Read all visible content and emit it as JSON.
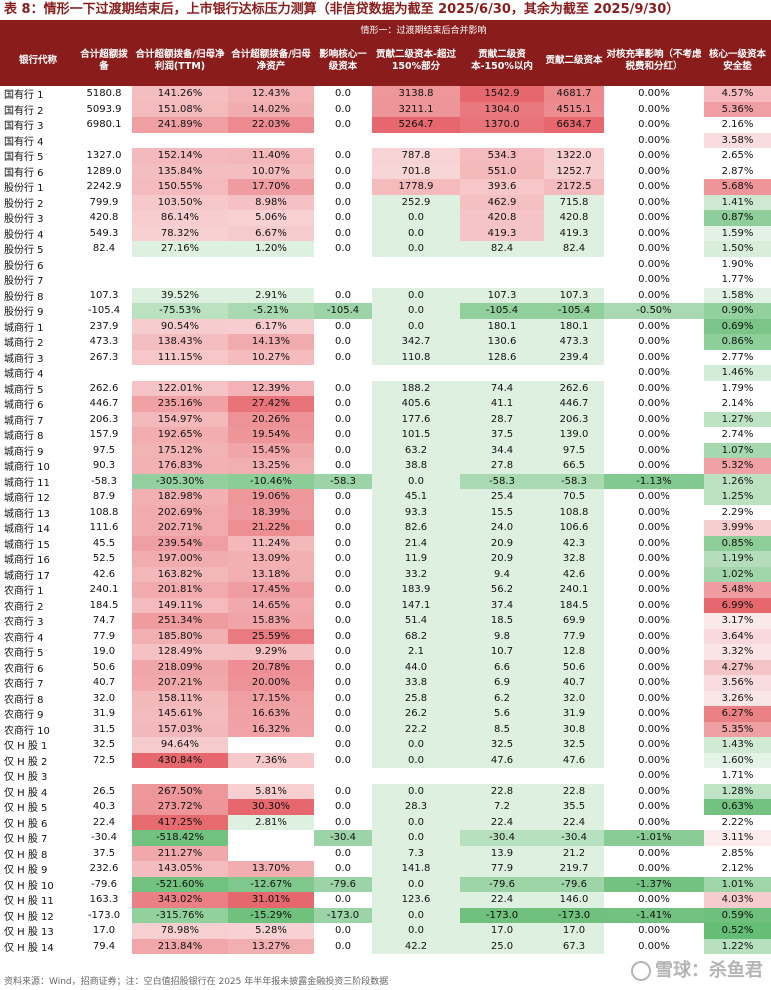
{
  "title": "表 8：情形一下过渡期结束后，上市银行达标压力测算（非信贷数据为截至 2025/6/30，其余为截至 2025/9/30）",
  "scenario_label": "情形一：过渡期结束后合并影响",
  "colors": {
    "header_bg": "#8b1c1c",
    "pos": "#d9545b",
    "neg": "#3ea65b"
  },
  "columns": [
    "银行代称",
    "合计超额拨备",
    "合计超额拨备/归母净利润(TTM)",
    "合计超额拨备/归母净资产",
    "影响核心一级资本",
    "贡献二级资本-超过150%部分",
    "贡献二级资本-150%以内",
    "贡献二级资本",
    "对核充率影响（不考虑税费和分红）",
    "核心一级资本安全垫"
  ],
  "rows": [
    [
      "国有行 1",
      "5180.8",
      "141.26%",
      "12.43%",
      "0.0",
      "3138.8",
      "1542.9",
      "4681.7",
      "0.00%",
      "4.57%"
    ],
    [
      "国有行 2",
      "5093.9",
      "151.08%",
      "14.02%",
      "0.0",
      "3211.1",
      "1304.0",
      "4515.1",
      "0.00%",
      "5.36%"
    ],
    [
      "国有行 3",
      "6980.1",
      "241.89%",
      "22.03%",
      "0.0",
      "5264.7",
      "1370.0",
      "6634.7",
      "0.00%",
      "2.16%"
    ],
    [
      "国有行 4",
      "",
      "",
      "",
      "",
      "",
      "",
      "",
      "0.00%",
      "3.58%"
    ],
    [
      "国有行 5",
      "1327.0",
      "152.14%",
      "11.40%",
      "0.0",
      "787.8",
      "534.3",
      "1322.0",
      "0.00%",
      "2.65%"
    ],
    [
      "国有行 6",
      "1289.0",
      "135.84%",
      "10.07%",
      "0.0",
      "701.8",
      "551.0",
      "1252.7",
      "0.00%",
      "2.87%"
    ],
    [
      "股份行 1",
      "2242.9",
      "150.55%",
      "17.70%",
      "0.0",
      "1778.9",
      "393.6",
      "2172.5",
      "0.00%",
      "5.68%"
    ],
    [
      "股份行 2",
      "799.9",
      "103.50%",
      "8.98%",
      "0.0",
      "252.9",
      "462.9",
      "715.8",
      "0.00%",
      "1.41%"
    ],
    [
      "股份行 3",
      "420.8",
      "86.14%",
      "5.06%",
      "0.0",
      "0.0",
      "420.8",
      "420.8",
      "0.00%",
      "0.87%"
    ],
    [
      "股份行 4",
      "549.3",
      "78.32%",
      "6.67%",
      "0.0",
      "0.0",
      "419.3",
      "419.3",
      "0.00%",
      "1.59%"
    ],
    [
      "股份行 5",
      "82.4",
      "27.16%",
      "1.20%",
      "0.0",
      "0.0",
      "82.4",
      "82.4",
      "0.00%",
      "1.50%"
    ],
    [
      "股份行 6",
      "",
      "",
      "",
      "",
      "",
      "",
      "",
      "0.00%",
      "1.90%"
    ],
    [
      "股份行 7",
      "",
      "",
      "",
      "",
      "",
      "",
      "",
      "0.00%",
      "1.77%"
    ],
    [
      "股份行 8",
      "107.3",
      "39.52%",
      "2.91%",
      "0.0",
      "0.0",
      "107.3",
      "107.3",
      "0.00%",
      "1.58%"
    ],
    [
      "股份行 9",
      "-105.4",
      "-75.53%",
      "-5.21%",
      "-105.4",
      "0.0",
      "-105.4",
      "-105.4",
      "-0.50%",
      "0.90%"
    ],
    [
      "城商行 1",
      "237.9",
      "90.54%",
      "6.17%",
      "0.0",
      "0.0",
      "180.1",
      "180.1",
      "0.00%",
      "0.69%"
    ],
    [
      "城商行 2",
      "473.3",
      "138.43%",
      "14.13%",
      "0.0",
      "342.7",
      "130.6",
      "473.3",
      "0.00%",
      "0.86%"
    ],
    [
      "城商行 3",
      "267.3",
      "111.15%",
      "10.27%",
      "0.0",
      "110.8",
      "128.6",
      "239.4",
      "0.00%",
      "2.77%"
    ],
    [
      "城商行 4",
      "",
      "",
      "",
      "",
      "",
      "",
      "",
      "0.00%",
      "1.46%"
    ],
    [
      "城商行 5",
      "262.6",
      "122.01%",
      "12.39%",
      "0.0",
      "188.2",
      "74.4",
      "262.6",
      "0.00%",
      "1.79%"
    ],
    [
      "城商行 6",
      "446.7",
      "235.16%",
      "27.42%",
      "0.0",
      "405.6",
      "41.1",
      "446.7",
      "0.00%",
      "2.14%"
    ],
    [
      "城商行 7",
      "206.3",
      "154.97%",
      "20.26%",
      "0.0",
      "177.6",
      "28.7",
      "206.3",
      "0.00%",
      "1.27%"
    ],
    [
      "城商行 8",
      "157.9",
      "192.65%",
      "19.54%",
      "0.0",
      "101.5",
      "37.5",
      "139.0",
      "0.00%",
      "2.74%"
    ],
    [
      "城商行 9",
      "97.5",
      "175.12%",
      "15.45%",
      "0.0",
      "63.2",
      "34.4",
      "97.5",
      "0.00%",
      "1.07%"
    ],
    [
      "城商行 10",
      "90.3",
      "176.83%",
      "13.25%",
      "0.0",
      "38.8",
      "27.8",
      "66.5",
      "0.00%",
      "5.32%"
    ],
    [
      "城商行 11",
      "-58.3",
      "-305.30%",
      "-10.46%",
      "-58.3",
      "0.0",
      "-58.3",
      "-58.3",
      "-1.13%",
      "1.26%"
    ],
    [
      "城商行 12",
      "87.9",
      "182.98%",
      "19.06%",
      "0.0",
      "45.1",
      "25.4",
      "70.5",
      "0.00%",
      "1.25%"
    ],
    [
      "城商行 13",
      "108.8",
      "202.69%",
      "18.39%",
      "0.0",
      "93.3",
      "15.5",
      "108.8",
      "0.00%",
      "2.29%"
    ],
    [
      "城商行 14",
      "111.6",
      "202.71%",
      "21.22%",
      "0.0",
      "82.6",
      "24.0",
      "106.6",
      "0.00%",
      "3.99%"
    ],
    [
      "城商行 15",
      "45.5",
      "239.54%",
      "11.24%",
      "0.0",
      "21.4",
      "20.9",
      "42.3",
      "0.00%",
      "0.85%"
    ],
    [
      "城商行 16",
      "52.5",
      "197.00%",
      "13.09%",
      "0.0",
      "11.9",
      "20.9",
      "32.8",
      "0.00%",
      "1.19%"
    ],
    [
      "城商行 17",
      "42.6",
      "163.82%",
      "13.18%",
      "0.0",
      "33.2",
      "9.4",
      "42.6",
      "0.00%",
      "1.02%"
    ],
    [
      "农商行 1",
      "240.1",
      "201.81%",
      "17.45%",
      "0.0",
      "183.9",
      "56.2",
      "240.1",
      "0.00%",
      "5.48%"
    ],
    [
      "农商行 2",
      "184.5",
      "149.11%",
      "14.65%",
      "0.0",
      "147.1",
      "37.4",
      "184.5",
      "0.00%",
      "6.99%"
    ],
    [
      "农商行 3",
      "74.7",
      "251.34%",
      "15.83%",
      "0.0",
      "51.4",
      "18.5",
      "69.9",
      "0.00%",
      "3.17%"
    ],
    [
      "农商行 4",
      "77.9",
      "185.80%",
      "25.59%",
      "0.0",
      "68.2",
      "9.8",
      "77.9",
      "0.00%",
      "3.64%"
    ],
    [
      "农商行 5",
      "19.0",
      "128.49%",
      "9.29%",
      "0.0",
      "2.1",
      "10.7",
      "12.8",
      "0.00%",
      "3.32%"
    ],
    [
      "农商行 6",
      "50.6",
      "218.09%",
      "20.78%",
      "0.0",
      "44.0",
      "6.6",
      "50.6",
      "0.00%",
      "4.27%"
    ],
    [
      "农商行 7",
      "40.7",
      "207.21%",
      "20.00%",
      "0.0",
      "33.8",
      "6.9",
      "40.7",
      "0.00%",
      "3.56%"
    ],
    [
      "农商行 8",
      "32.0",
      "158.11%",
      "17.15%",
      "0.0",
      "25.8",
      "6.2",
      "32.0",
      "0.00%",
      "3.26%"
    ],
    [
      "农商行 9",
      "31.9",
      "145.61%",
      "16.63%",
      "0.0",
      "26.2",
      "5.6",
      "31.9",
      "0.00%",
      "6.27%"
    ],
    [
      "农商行 10",
      "31.5",
      "157.03%",
      "16.32%",
      "0.0",
      "22.2",
      "8.5",
      "30.8",
      "0.00%",
      "5.35%"
    ],
    [
      "仅 H 股 1",
      "32.5",
      "94.64%",
      "",
      "0.0",
      "0.0",
      "32.5",
      "32.5",
      "0.00%",
      "1.43%"
    ],
    [
      "仅 H 股 2",
      "72.5",
      "430.84%",
      "7.36%",
      "0.0",
      "0.0",
      "47.6",
      "47.6",
      "0.00%",
      "1.60%"
    ],
    [
      "仅 H 股 3",
      "",
      "",
      "",
      "",
      "",
      "",
      "",
      "0.00%",
      "1.71%"
    ],
    [
      "仅 H 股 4",
      "26.5",
      "267.50%",
      "5.81%",
      "0.0",
      "0.0",
      "22.8",
      "22.8",
      "0.00%",
      "1.28%"
    ],
    [
      "仅 H 股 5",
      "40.3",
      "273.72%",
      "30.30%",
      "0.0",
      "28.3",
      "7.2",
      "35.5",
      "0.00%",
      "0.63%"
    ],
    [
      "仅 H 股 6",
      "22.4",
      "417.25%",
      "2.81%",
      "0.0",
      "0.0",
      "22.4",
      "22.4",
      "0.00%",
      "2.22%"
    ],
    [
      "仅 H 股 7",
      "-30.4",
      "-518.42%",
      "",
      "-30.4",
      "0.0",
      "-30.4",
      "-30.4",
      "-1.01%",
      "3.11%"
    ],
    [
      "仅 H 股 8",
      "37.5",
      "211.27%",
      "",
      "0.0",
      "7.3",
      "13.9",
      "21.2",
      "0.00%",
      "2.85%"
    ],
    [
      "仅 H 股 9",
      "232.6",
      "143.05%",
      "13.70%",
      "0.0",
      "141.8",
      "77.9",
      "219.7",
      "0.00%",
      "2.12%"
    ],
    [
      "仅 H 股 10",
      "-79.6",
      "-521.60%",
      "-12.67%",
      "-79.6",
      "0.0",
      "-79.6",
      "-79.6",
      "-1.37%",
      "1.01%"
    ],
    [
      "仅 H 股 11",
      "163.3",
      "343.02%",
      "31.01%",
      "0.0",
      "123.6",
      "22.4",
      "146.0",
      "0.00%",
      "4.03%"
    ],
    [
      "仅 H 股 12",
      "-173.0",
      "-315.76%",
      "-15.29%",
      "-173.0",
      "0.0",
      "-173.0",
      "-173.0",
      "-1.41%",
      "0.59%"
    ],
    [
      "仅 H 股 13",
      "17.0",
      "78.98%",
      "5.28%",
      "0.0",
      "0.0",
      "17.0",
      "17.0",
      "0.00%",
      "0.52%"
    ],
    [
      "仅 H 股 14",
      "79.4",
      "213.84%",
      "13.27%",
      "0.0",
      "42.2",
      "25.0",
      "67.3",
      "0.00%",
      "1.22%"
    ]
  ],
  "source": "资料来源：Wind，招商证券；注：空白值招股银行在 2025 年半年报未披露金融投资三阶段数据",
  "watermark": "雪球：杀鱼君"
}
